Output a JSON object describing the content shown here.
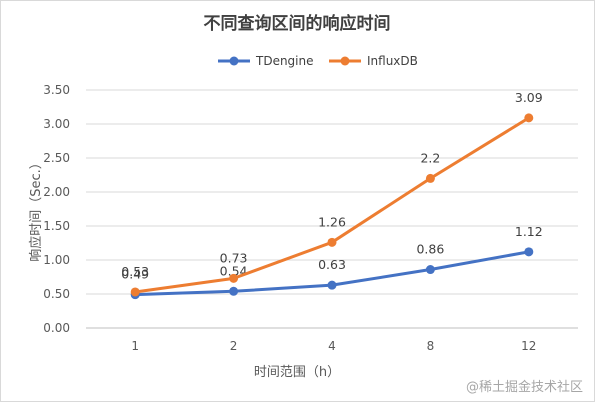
{
  "chart_data": {
    "type": "line",
    "title": "不同查询区间的响应时间",
    "xlabel": "时间范围（h）",
    "ylabel": "响应时间（Sec.）",
    "categories": [
      "1",
      "2",
      "4",
      "8",
      "12"
    ],
    "ylim": [
      0,
      3.5
    ],
    "yticks": [
      "0.00",
      "0.50",
      "1.00",
      "1.50",
      "2.00",
      "2.50",
      "3.00",
      "3.50"
    ],
    "grid": true,
    "legend_position": "top",
    "series": [
      {
        "name": "TDengine",
        "color": "#4472C4",
        "values": [
          0.49,
          0.54,
          0.63,
          0.86,
          1.12
        ],
        "labels": [
          "0.49",
          "0.54",
          "0.63",
          "0.86",
          "1.12"
        ]
      },
      {
        "name": "InfluxDB",
        "color": "#ED7D31",
        "values": [
          0.53,
          0.73,
          1.26,
          2.2,
          3.09
        ],
        "labels": [
          "0.53",
          "0.73",
          "1.26",
          "2.2",
          "3.09"
        ]
      }
    ]
  },
  "watermark": "@稀土掘金技术社区"
}
